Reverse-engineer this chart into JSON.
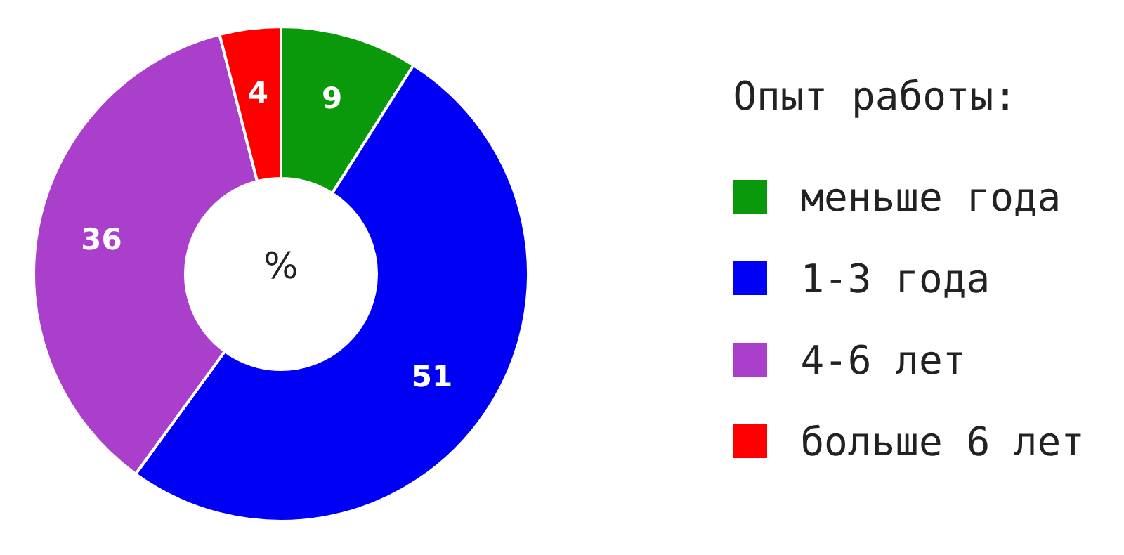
{
  "chart_data": {
    "type": "donut",
    "legend_title": "Опыт работы:",
    "categories": [
      "меньше года",
      "1-3 года",
      "4-6 лет",
      "больше 6 лет"
    ],
    "values": [
      9,
      51,
      36,
      4
    ],
    "colors": [
      "#0a990a",
      "#0000f5",
      "#aa3fcb",
      "#ff0000"
    ],
    "data_labels": true,
    "legend": "right",
    "annotations": [
      "%"
    ]
  }
}
